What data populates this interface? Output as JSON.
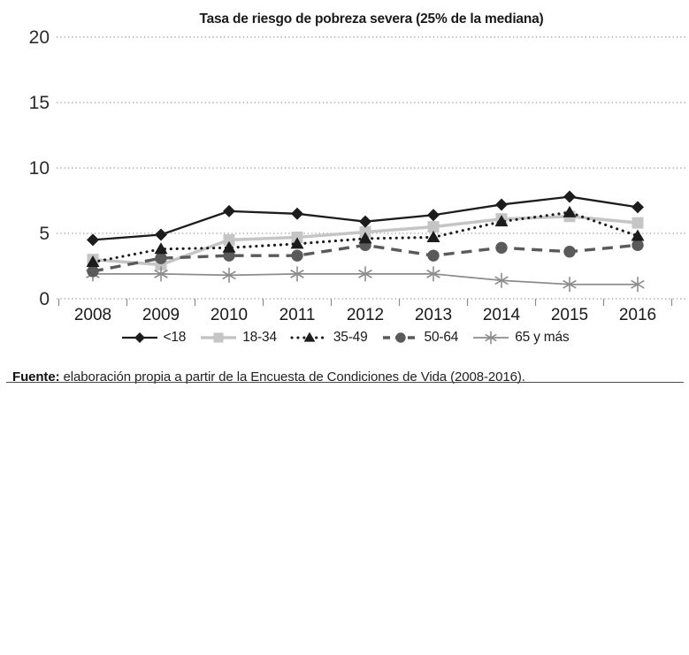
{
  "title": "Tasa de riesgo de pobreza severa (25% de la mediana)",
  "source": {
    "label": "Fuente:",
    "text": " elaboración propia a partir de la Encuesta de Condiciones de Vida (2008-2016)."
  },
  "chart_data": {
    "type": "line",
    "title": "Tasa de riesgo de pobreza severa (25% de la mediana)",
    "x": [
      "2008",
      "2009",
      "2010",
      "2011",
      "2012",
      "2013",
      "2014",
      "2015",
      "2016"
    ],
    "series": [
      {
        "name": "<18",
        "marker": "diamond",
        "line": "solid",
        "color": "#1c1c1c",
        "values": [
          4.5,
          4.9,
          6.7,
          6.5,
          5.9,
          6.4,
          7.2,
          7.8,
          7.0
        ]
      },
      {
        "name": "18-34",
        "marker": "square",
        "line": "solid",
        "color": "#c5c5c5",
        "values": [
          3.0,
          2.6,
          4.5,
          4.7,
          5.1,
          5.5,
          6.1,
          6.3,
          5.8
        ]
      },
      {
        "name": "35-49",
        "marker": "triangle",
        "line": "dotted",
        "color": "#1c1c1c",
        "values": [
          2.8,
          3.8,
          3.9,
          4.2,
          4.6,
          4.7,
          5.9,
          6.6,
          4.8
        ]
      },
      {
        "name": "50-64",
        "marker": "circle",
        "line": "dashed",
        "color": "#5a5a5a",
        "values": [
          2.1,
          3.1,
          3.3,
          3.3,
          4.1,
          3.3,
          3.9,
          3.6,
          4.1
        ]
      },
      {
        "name": "65 y más",
        "marker": "asterisk",
        "line": "solid",
        "color": "#8c8c8c",
        "values": [
          1.9,
          1.9,
          1.8,
          1.9,
          1.9,
          1.9,
          1.4,
          1.1,
          1.1
        ]
      }
    ],
    "ylim": [
      0,
      20
    ],
    "yticks": [
      0,
      5,
      10,
      15,
      20
    ],
    "grid": "horizontal-dotted",
    "legend_position": "bottom",
    "grid_color": "#999999",
    "axis_text_color": "#2b2b2b"
  }
}
